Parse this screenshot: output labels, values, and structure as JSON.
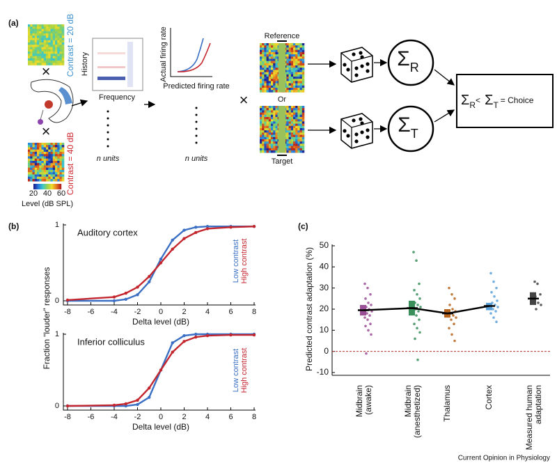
{
  "diagram": {
    "panel": "(a)",
    "contrast_low": "Contrast = 20 dB",
    "contrast_high": "Contrast = 40 dB",
    "times": "×",
    "colorbar": {
      "ticks": [
        "20",
        "40",
        "60"
      ],
      "label": "Level (dB SPL)"
    },
    "strf": {
      "ylabel": "History",
      "xlabel": "Frequency"
    },
    "nonlinearity": {
      "ylabel": "Actual firing rate",
      "xlabel": "Predicted firing rate"
    },
    "n_units": "n units",
    "reference": "Reference",
    "or": "Or",
    "target": "Target",
    "sum_r": {
      "symbol": "Σ",
      "sub": "R"
    },
    "sum_t": {
      "symbol": "Σ",
      "sub": "T"
    },
    "choice": {
      "left": "Σ",
      "left_sub": "R",
      "lt": "<",
      "right": "Σ",
      "right_sub": "T",
      "rest": "= Choice"
    }
  },
  "chart_data": [
    {
      "type": "line",
      "panel": "(b)",
      "title": "Auditory cortex",
      "xlabel": "Delta level (dB)",
      "ylabel": "Fraction “louder” responses",
      "x": [
        -8,
        -4,
        -3,
        -2,
        -1,
        0,
        1,
        2,
        3,
        4,
        6,
        8
      ],
      "series": [
        {
          "name": "Low contrast",
          "color": "#3a6fc4",
          "values": [
            0,
            0,
            0.02,
            0.08,
            0.25,
            0.55,
            0.8,
            0.93,
            0.97,
            0.98,
            0.98,
            0.98
          ]
        },
        {
          "name": "High contrast",
          "color": "#c4262e",
          "values": [
            0.01,
            0.05,
            0.1,
            0.18,
            0.32,
            0.5,
            0.68,
            0.82,
            0.9,
            0.95,
            0.97,
            0.98
          ]
        }
      ],
      "xlim": [
        -8,
        8
      ],
      "xticks": [
        -8,
        -6,
        -4,
        -2,
        0,
        2,
        4,
        6,
        8
      ],
      "ylim": [
        0,
        1
      ],
      "yticks": [
        0,
        1
      ]
    },
    {
      "type": "line",
      "title": "Inferior colliculus",
      "xlabel": "Delta level (dB)",
      "x": [
        -8,
        -4,
        -3,
        -2,
        -1,
        0,
        1,
        2,
        3,
        4,
        6,
        8
      ],
      "series": [
        {
          "name": "Low contrast",
          "color": "#3a6fc4",
          "values": [
            0,
            0,
            0,
            0.02,
            0.12,
            0.5,
            0.88,
            0.98,
            1,
            1,
            1,
            1
          ]
        },
        {
          "name": "High contrast",
          "color": "#c4262e",
          "values": [
            0,
            0.01,
            0.03,
            0.08,
            0.25,
            0.5,
            0.75,
            0.9,
            0.96,
            0.98,
            0.99,
            0.99
          ]
        }
      ],
      "xlim": [
        -8,
        8
      ],
      "xticks": [
        -8,
        -6,
        -4,
        -2,
        0,
        2,
        4,
        6,
        8
      ],
      "ylim": [
        0,
        1
      ],
      "yticks": [
        0,
        1
      ]
    },
    {
      "type": "strip",
      "panel": "(c)",
      "ylabel": "Predicted contrast adaptation (%)",
      "categories": [
        "Midbrain\n(awake)",
        "Midbrain\n(anesthetized)",
        "Thalamus",
        "Cortex",
        "Measured human\nadaptation"
      ],
      "colors": [
        "#9b4f96",
        "#3a8f5a",
        "#b8651d",
        "#5aa0d8",
        "#444444"
      ],
      "means": [
        19.5,
        20.5,
        18,
        21.5,
        25
      ],
      "ranges": [
        [
          17,
          22
        ],
        [
          17,
          24
        ],
        [
          16,
          20
        ],
        [
          19.5,
          23
        ],
        [
          22,
          28
        ]
      ],
      "points": [
        [
          32,
          30,
          27,
          25,
          23,
          22,
          21,
          20,
          19,
          18,
          17,
          16,
          15,
          13,
          12,
          10,
          8,
          -1
        ],
        [
          47,
          43,
          32,
          29,
          27,
          25,
          23,
          22,
          21,
          20,
          19,
          18,
          17,
          15,
          13,
          11,
          9,
          6,
          -4
        ],
        [
          30,
          27,
          25,
          22,
          20,
          19,
          18,
          17,
          16,
          15,
          13,
          11,
          8,
          5
        ],
        [
          37,
          33,
          30,
          28,
          26,
          24,
          23,
          22,
          21,
          20,
          19,
          18,
          16,
          14
        ],
        [
          33,
          32,
          27,
          26,
          23,
          22,
          20
        ]
      ],
      "reference_line": 0,
      "ylim": [
        -10,
        50
      ],
      "yticks": [
        -10,
        0,
        10,
        20,
        30,
        40,
        50
      ]
    }
  ],
  "footer": "Current Opinion in Physiology"
}
